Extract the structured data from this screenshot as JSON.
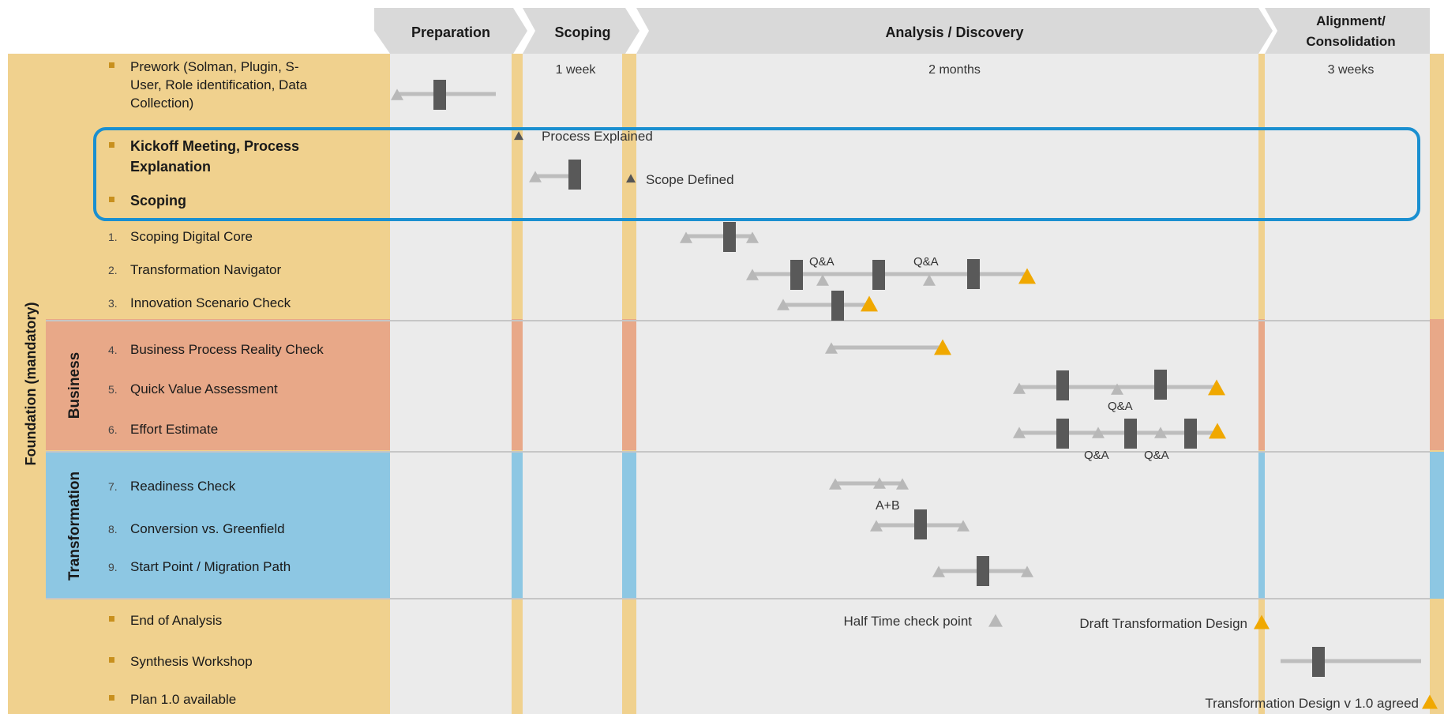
{
  "phases": [
    {
      "key": "preparation",
      "label": [
        "Preparation"
      ],
      "duration": ""
    },
    {
      "key": "scoping",
      "label": [
        "Scoping"
      ],
      "duration": "1 week"
    },
    {
      "key": "analysis",
      "label": [
        "Analysis / Discovery"
      ],
      "duration": "2 months"
    },
    {
      "key": "alignment",
      "label": [
        "Alignment/",
        "Consolidation"
      ],
      "duration": "3 weeks"
    }
  ],
  "side_labels": {
    "foundation": "Foundation (mandatory)",
    "business": "Business",
    "transformation": "Transformation"
  },
  "rows": [
    {
      "id": "prework",
      "bullet": "square",
      "lines": [
        "Prework (Solman, Plugin, S-",
        "User, Role identification, Data",
        "Collection)"
      ],
      "bold": false
    },
    {
      "id": "kickoff",
      "bullet": "square",
      "lines": [
        "Kickoff Meeting, Process",
        "Explanation"
      ],
      "bold": true
    },
    {
      "id": "scoping",
      "bullet": "square",
      "lines": [
        "Scoping"
      ],
      "bold": true
    },
    {
      "id": "scoping-digital-core",
      "bullet": "1.",
      "lines": [
        "Scoping Digital Core"
      ],
      "bold": false
    },
    {
      "id": "transformation-navigator",
      "bullet": "2.",
      "lines": [
        "Transformation Navigator"
      ],
      "bold": false
    },
    {
      "id": "innovation-scenario-check",
      "bullet": "3.",
      "lines": [
        "Innovation Scenario Check"
      ],
      "bold": false
    },
    {
      "id": "business-process-reality-check",
      "bullet": "4.",
      "lines": [
        "Business Process Reality Check"
      ],
      "bold": false
    },
    {
      "id": "quick-value-assessment",
      "bullet": "5.",
      "lines": [
        "Quick Value Assessment"
      ],
      "bold": false
    },
    {
      "id": "effort-estimate",
      "bullet": "6.",
      "lines": [
        "Effort Estimate"
      ],
      "bold": false
    },
    {
      "id": "readiness-check",
      "bullet": "7.",
      "lines": [
        "Readiness Check"
      ],
      "bold": false
    },
    {
      "id": "conversion-vs-greenfield",
      "bullet": "8.",
      "lines": [
        "Conversion vs. Greenfield"
      ],
      "bold": false
    },
    {
      "id": "start-point-migration-path",
      "bullet": "9.",
      "lines": [
        "Start Point / Migration Path"
      ],
      "bold": false
    },
    {
      "id": "end-of-analysis",
      "bullet": "square",
      "lines": [
        "End of Analysis"
      ],
      "bold": false
    },
    {
      "id": "synthesis-workshop",
      "bullet": "square",
      "lines": [
        "Synthesis Workshop"
      ],
      "bold": false
    },
    {
      "id": "plan-available",
      "bullet": "square",
      "lines": [
        "Plan 1.0 available"
      ],
      "bold": false
    }
  ],
  "milestone_labels": {
    "process_explained": "Process Explained",
    "scope_defined": "Scope Defined",
    "qa": "Q&A",
    "a_plus_b": "A+B",
    "half_time": "Half Time check point",
    "draft_design": "Draft Transformation Design",
    "design_agreed": "Transformation Design v 1.0 agreed"
  },
  "colors": {
    "foundation_band": "#F0D18E",
    "business_band": "#E8A888",
    "transformation_band": "#8DC7E3",
    "timeline_bg": "#EBEBEB",
    "header_bg": "#D9D9D9",
    "bar_dark": "#595959",
    "line_grey": "#BDBDBD",
    "milestone_grey": "#B8B8B8",
    "milestone_orange": "#F0A800",
    "bullet_orange": "#C8901E",
    "highlight_border": "#1A8FD0",
    "divider": "#C6C6C6"
  }
}
